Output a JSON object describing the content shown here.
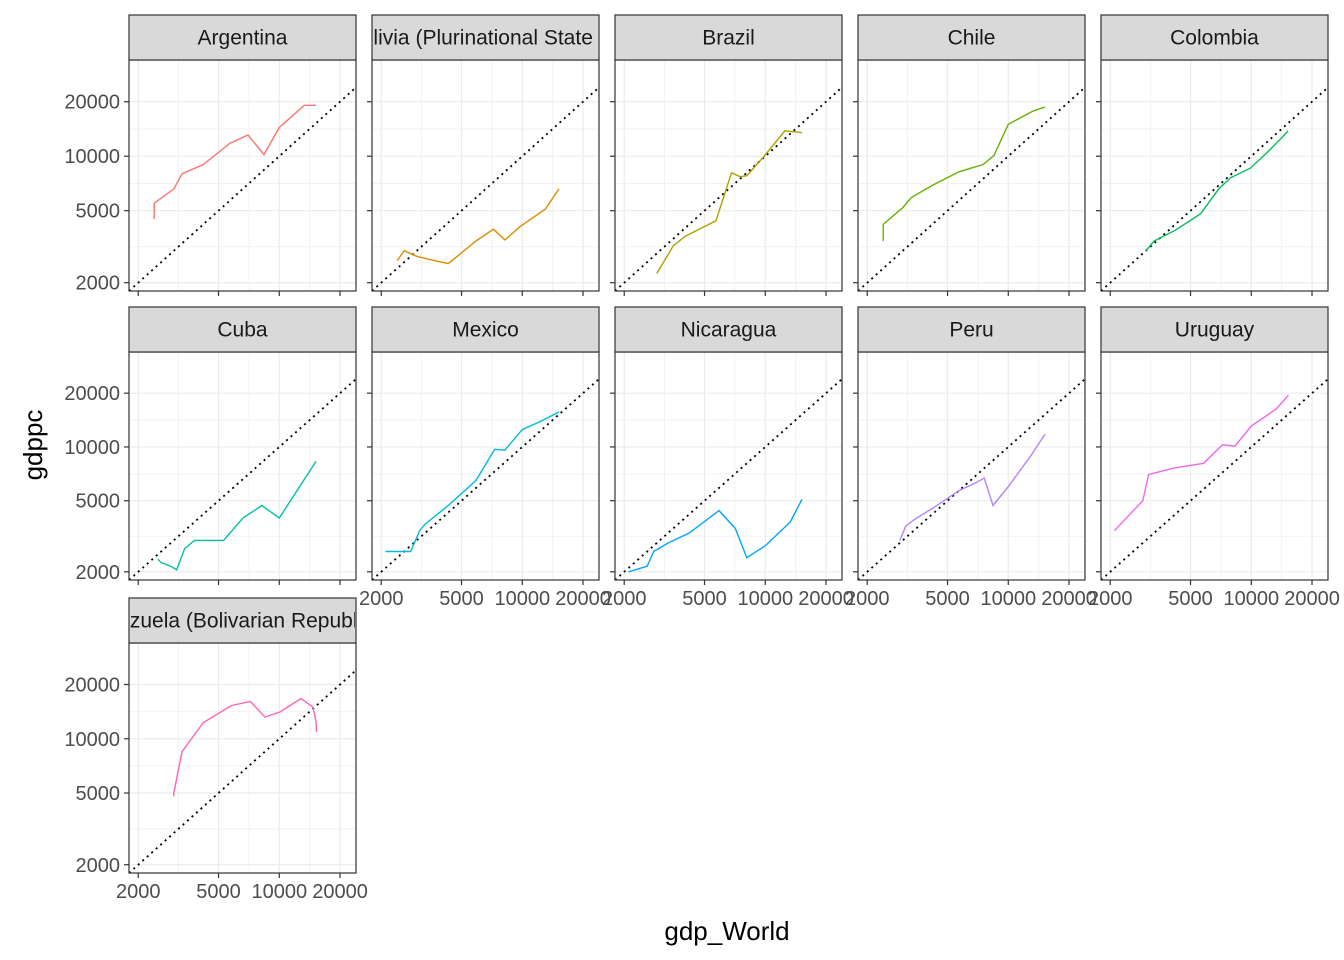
{
  "chart_data": {
    "type": "line",
    "layout": "facet_wrap",
    "xlabel": "gdp_World",
    "ylabel": "gdppc",
    "x_scale": "log",
    "y_scale": "log",
    "xlim": [
      1800,
      24000
    ],
    "ylim": [
      1800,
      34000
    ],
    "x_ticks": [
      2000,
      5000,
      10000,
      20000
    ],
    "y_ticks": [
      2000,
      5000,
      10000,
      20000
    ],
    "reference_line": "y = x (dotted)",
    "grid": true,
    "legend": "none",
    "panels": [
      {
        "name": "Argentina",
        "color": "#F8766D",
        "x": [
          2400,
          2400,
          3000,
          3300,
          4200,
          5700,
          7000,
          8400,
          10000,
          13300,
          15200
        ],
        "y": [
          4500,
          5500,
          6600,
          8000,
          9000,
          11800,
          13100,
          10200,
          14400,
          19100,
          19100
        ]
      },
      {
        "name": "Bolivia (Plurinational State of)",
        "color": "#DB8E00",
        "x": [
          2400,
          2600,
          3000,
          3400,
          4300,
          5900,
          7200,
          8200,
          9800,
          13000,
          15200
        ],
        "y": [
          2650,
          3000,
          2800,
          2700,
          2550,
          3400,
          3950,
          3450,
          4100,
          5100,
          6600
        ]
      },
      {
        "name": "Brazil",
        "color": "#AEA200",
        "x": [
          2900,
          3500,
          4000,
          4800,
          5700,
          6800,
          7500,
          8100,
          9800,
          12500,
          15200
        ],
        "y": [
          2250,
          3200,
          3600,
          4000,
          4400,
          8100,
          7700,
          7800,
          9900,
          13800,
          13500
        ]
      },
      {
        "name": "Chile",
        "color": "#64B200",
        "x": [
          2400,
          2400,
          3000,
          3300,
          4200,
          5700,
          7500,
          8500,
          10000,
          13300,
          15200
        ],
        "y": [
          3400,
          4200,
          5200,
          5900,
          6900,
          8200,
          9000,
          10100,
          15000,
          17800,
          18700
        ]
      },
      {
        "name": "Colombia",
        "color": "#00BD5C",
        "x": [
          3000,
          3300,
          4200,
          5600,
          6900,
          7900,
          9900,
          12000,
          14000,
          15200
        ],
        "y": [
          3000,
          3400,
          3900,
          4800,
          6600,
          7600,
          8600,
          10500,
          12500,
          13800
        ]
      },
      {
        "name": "Cuba",
        "color": "#00C1A7",
        "x": [
          2500,
          2600,
          2900,
          3100,
          3400,
          3800,
          5300,
          6600,
          8200,
          10000,
          15200
        ],
        "y": [
          2350,
          2250,
          2150,
          2050,
          2700,
          3000,
          3000,
          4000,
          4700,
          4000,
          8300
        ]
      },
      {
        "name": "Mexico",
        "color": "#00BADE",
        "x": [
          2100,
          2800,
          3100,
          3300,
          4300,
          5900,
          7300,
          8200,
          10000,
          12500,
          15200
        ],
        "y": [
          2600,
          2600,
          3400,
          3700,
          4700,
          6500,
          9700,
          9600,
          12500,
          14000,
          15700
        ]
      },
      {
        "name": "Nicaragua",
        "color": "#00A6FF",
        "x": [
          2100,
          2600,
          2800,
          3300,
          4200,
          5900,
          7100,
          8100,
          10000,
          13300,
          15200
        ],
        "y": [
          2000,
          2150,
          2600,
          2900,
          3300,
          4400,
          3500,
          2400,
          2800,
          3800,
          5100
        ]
      },
      {
        "name": "Peru",
        "color": "#B385FF",
        "x": [
          2900,
          3100,
          3400,
          4300,
          5700,
          6900,
          7600,
          8400,
          10000,
          13000,
          15200
        ],
        "y": [
          3000,
          3600,
          3900,
          4600,
          5700,
          6300,
          6700,
          4700,
          6000,
          9000,
          11800
        ]
      },
      {
        "name": "Uruguay",
        "color": "#EF67EB",
        "x": [
          2100,
          2200,
          2900,
          3100,
          4100,
          5800,
          7200,
          8300,
          10000,
          13300,
          15300
        ],
        "y": [
          3400,
          3600,
          5000,
          7000,
          7600,
          8100,
          10300,
          10100,
          13100,
          16300,
          19500
        ]
      },
      {
        "name": "Venezuela (Bolivarian Republic of)",
        "color": "#FF63B6",
        "x": [
          3000,
          3000,
          3300,
          4200,
          5800,
          7200,
          8500,
          10100,
          12800,
          14700,
          15200,
          15300
        ],
        "y": [
          4800,
          5000,
          8500,
          12300,
          15300,
          16100,
          13200,
          14100,
          16700,
          15000,
          12500,
          10900
        ]
      }
    ]
  }
}
